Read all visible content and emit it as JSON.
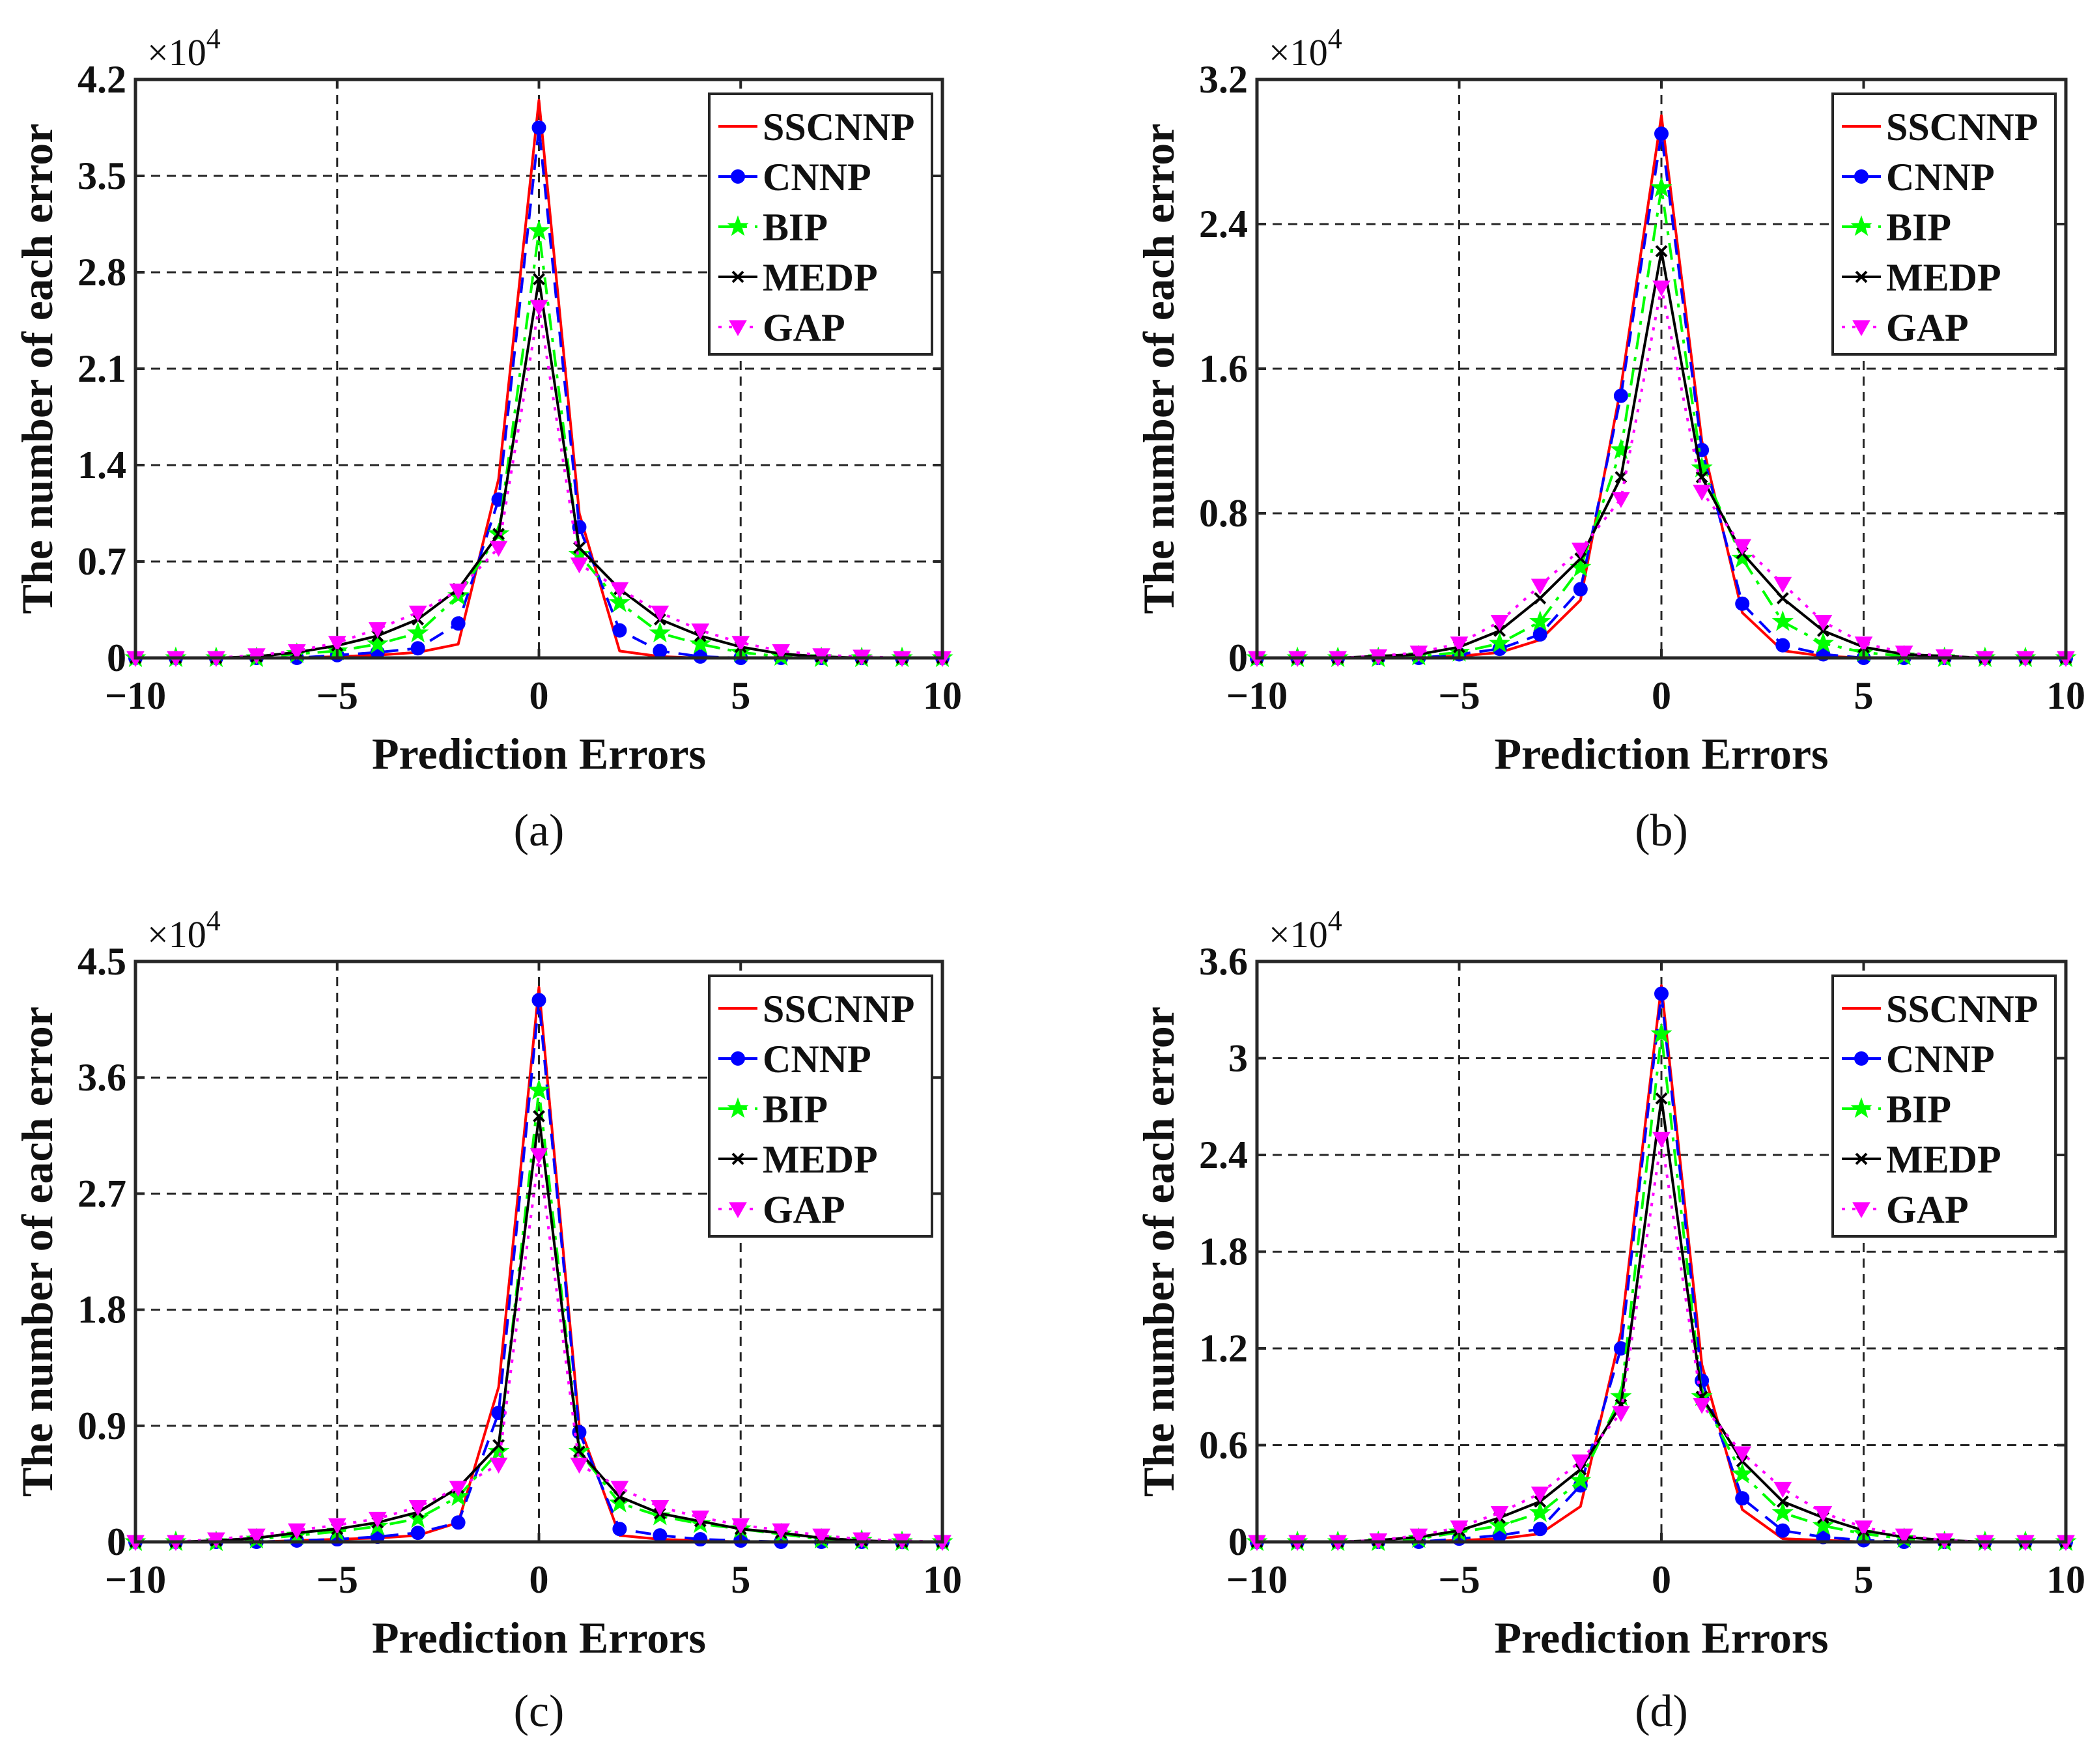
{
  "chart_data": [
    {
      "type": "line",
      "caption": "(a)",
      "xlabel": "Prediction Errors",
      "ylabel": "The number of each error",
      "multiplier": "×10",
      "multiplier_exp": "4",
      "xlim": [
        -10,
        10
      ],
      "ylim": [
        0,
        4.2
      ],
      "xticks": [
        -10,
        -5,
        0,
        5,
        10
      ],
      "xtick_labels": [
        "−10",
        "−5",
        "0",
        "5",
        "10"
      ],
      "yticks": [
        0,
        0.7,
        1.4,
        2.1,
        2.8,
        3.5,
        4.2
      ],
      "ytick_labels": [
        "0",
        "0.7",
        "1.4",
        "2.1",
        "2.8",
        "3.5",
        "4.2"
      ],
      "legend_position": "top-right",
      "x": [
        -10,
        -9,
        -8,
        -7,
        -6,
        -5,
        -4,
        -3,
        -2,
        -1,
        0,
        1,
        2,
        3,
        4,
        5,
        6,
        7,
        8,
        9,
        10
      ],
      "series": [
        {
          "name": "SSCNNP",
          "values": [
            0,
            0,
            0,
            0,
            0,
            0.01,
            0.02,
            0.04,
            0.1,
            1.3,
            4.05,
            1.05,
            0.05,
            0.01,
            0,
            0,
            0,
            0,
            0,
            0,
            0
          ]
        },
        {
          "name": "CNNP",
          "values": [
            0,
            0,
            0,
            0,
            0,
            0.02,
            0.04,
            0.07,
            0.25,
            1.15,
            3.85,
            0.95,
            0.2,
            0.05,
            0.01,
            0,
            0,
            0,
            0,
            0,
            0
          ]
        },
        {
          "name": "BIP",
          "values": [
            0,
            0,
            0,
            0,
            0.03,
            0.05,
            0.1,
            0.18,
            0.45,
            0.9,
            3.1,
            0.75,
            0.4,
            0.18,
            0.1,
            0.04,
            0.01,
            0,
            0,
            0,
            0
          ]
        },
        {
          "name": "MEDP",
          "values": [
            0,
            0,
            0,
            0.01,
            0.04,
            0.09,
            0.16,
            0.28,
            0.5,
            0.9,
            2.75,
            0.8,
            0.5,
            0.28,
            0.16,
            0.08,
            0.03,
            0.01,
            0,
            0,
            0
          ]
        },
        {
          "name": "GAP",
          "values": [
            0,
            0,
            0,
            0.02,
            0.05,
            0.11,
            0.21,
            0.33,
            0.49,
            0.8,
            2.55,
            0.68,
            0.5,
            0.33,
            0.2,
            0.11,
            0.05,
            0.02,
            0.01,
            0,
            0
          ]
        }
      ]
    },
    {
      "type": "line",
      "caption": "(b)",
      "xlabel": "Prediction Errors",
      "ylabel": "The number of each error",
      "multiplier": "×10",
      "multiplier_exp": "4",
      "xlim": [
        -10,
        10
      ],
      "ylim": [
        0,
        3.2
      ],
      "xticks": [
        -10,
        -5,
        0,
        5,
        10
      ],
      "xtick_labels": [
        "−10",
        "−5",
        "0",
        "5",
        "10"
      ],
      "yticks": [
        0,
        0.8,
        1.6,
        2.4,
        3.2
      ],
      "ytick_labels": [
        "0",
        "0.8",
        "1.6",
        "2.4",
        "3.2"
      ],
      "legend_position": "top-right",
      "x": [
        -10,
        -9,
        -8,
        -7,
        -6,
        -5,
        -4,
        -3,
        -2,
        -1,
        0,
        1,
        2,
        3,
        4,
        5,
        6,
        7,
        8,
        9,
        10
      ],
      "series": [
        {
          "name": "SSCNNP",
          "values": [
            0,
            0,
            0,
            0,
            0,
            0.01,
            0.03,
            0.1,
            0.32,
            1.5,
            3.0,
            1.2,
            0.25,
            0.04,
            0.01,
            0,
            0,
            0,
            0,
            0,
            0
          ]
        },
        {
          "name": "CNNP",
          "values": [
            0,
            0,
            0,
            0,
            0,
            0.02,
            0.05,
            0.13,
            0.38,
            1.45,
            2.9,
            1.15,
            0.3,
            0.07,
            0.02,
            0,
            0,
            0,
            0,
            0,
            0
          ]
        },
        {
          "name": "BIP",
          "values": [
            0,
            0,
            0,
            0,
            0.01,
            0.03,
            0.08,
            0.2,
            0.5,
            1.15,
            2.6,
            1.05,
            0.55,
            0.2,
            0.08,
            0.03,
            0.01,
            0,
            0,
            0,
            0
          ]
        },
        {
          "name": "MEDP",
          "values": [
            0,
            0,
            0,
            0.01,
            0.02,
            0.06,
            0.15,
            0.33,
            0.55,
            1.0,
            2.25,
            1.0,
            0.58,
            0.33,
            0.15,
            0.06,
            0.02,
            0.01,
            0,
            0,
            0
          ]
        },
        {
          "name": "GAP",
          "values": [
            0,
            0,
            0,
            0.01,
            0.03,
            0.08,
            0.2,
            0.4,
            0.6,
            0.88,
            2.05,
            0.92,
            0.62,
            0.41,
            0.2,
            0.08,
            0.03,
            0.01,
            0,
            0,
            0
          ]
        }
      ]
    },
    {
      "type": "line",
      "caption": "(c)",
      "xlabel": "Prediction Errors",
      "ylabel": "The number of each error",
      "multiplier": "×10",
      "multiplier_exp": "4",
      "xlim": [
        -10,
        10
      ],
      "ylim": [
        0,
        4.5
      ],
      "xticks": [
        -10,
        -5,
        0,
        5,
        10
      ],
      "xtick_labels": [
        "−10",
        "−5",
        "0",
        "5",
        "10"
      ],
      "yticks": [
        0,
        0.9,
        1.8,
        2.7,
        3.6,
        4.5
      ],
      "ytick_labels": [
        "0",
        "0.9",
        "1.8",
        "2.7",
        "3.6",
        "4.5"
      ],
      "legend_position": "top-right",
      "x": [
        -10,
        -9,
        -8,
        -7,
        -6,
        -5,
        -4,
        -3,
        -2,
        -1,
        0,
        1,
        2,
        3,
        4,
        5,
        6,
        7,
        8,
        9,
        10
      ],
      "series": [
        {
          "name": "SSCNNP",
          "values": [
            0,
            0,
            0,
            0,
            0.01,
            0.02,
            0.03,
            0.05,
            0.15,
            1.2,
            4.3,
            0.9,
            0.05,
            0.02,
            0.01,
            0,
            0,
            0,
            0,
            0,
            0
          ]
        },
        {
          "name": "CNNP",
          "values": [
            0,
            0,
            0,
            0,
            0.01,
            0.02,
            0.04,
            0.07,
            0.15,
            1.0,
            4.2,
            0.85,
            0.1,
            0.05,
            0.02,
            0.01,
            0,
            0,
            0,
            0,
            0
          ]
        },
        {
          "name": "BIP",
          "values": [
            0,
            0,
            0,
            0.02,
            0.05,
            0.08,
            0.12,
            0.18,
            0.35,
            0.7,
            3.5,
            0.7,
            0.3,
            0.2,
            0.14,
            0.1,
            0.06,
            0.02,
            0.01,
            0,
            0
          ]
        },
        {
          "name": "MEDP",
          "values": [
            0,
            0,
            0.01,
            0.03,
            0.07,
            0.1,
            0.15,
            0.23,
            0.42,
            0.75,
            3.3,
            0.7,
            0.35,
            0.22,
            0.16,
            0.1,
            0.07,
            0.03,
            0.01,
            0,
            0
          ]
        },
        {
          "name": "GAP",
          "values": [
            0,
            0,
            0.02,
            0.05,
            0.09,
            0.13,
            0.18,
            0.27,
            0.42,
            0.6,
            3.0,
            0.6,
            0.42,
            0.27,
            0.19,
            0.13,
            0.09,
            0.05,
            0.02,
            0.01,
            0
          ]
        }
      ]
    },
    {
      "type": "line",
      "caption": "(d)",
      "xlabel": "Prediction Errors",
      "ylabel": "The number of each error",
      "multiplier": "×10",
      "multiplier_exp": "4",
      "xlim": [
        -10,
        10
      ],
      "ylim": [
        0,
        3.6
      ],
      "xticks": [
        -10,
        -5,
        0,
        5,
        10
      ],
      "xtick_labels": [
        "−10",
        "−5",
        "0",
        "5",
        "10"
      ],
      "yticks": [
        0,
        0.6,
        1.2,
        1.8,
        2.4,
        3,
        3.6
      ],
      "ytick_labels": [
        "0",
        "0.6",
        "1.2",
        "1.8",
        "2.4",
        "3",
        "3.6"
      ],
      "legend_position": "top-right",
      "x": [
        -10,
        -9,
        -8,
        -7,
        -6,
        -5,
        -4,
        -3,
        -2,
        -1,
        0,
        1,
        2,
        3,
        4,
        5,
        6,
        7,
        8,
        9,
        10
      ],
      "series": [
        {
          "name": "SSCNNP",
          "values": [
            0,
            0,
            0,
            0,
            0,
            0.01,
            0.02,
            0.05,
            0.22,
            1.3,
            3.45,
            1.1,
            0.2,
            0.02,
            0.01,
            0,
            0,
            0,
            0,
            0,
            0
          ]
        },
        {
          "name": "CNNP",
          "values": [
            0,
            0,
            0,
            0,
            0,
            0.02,
            0.04,
            0.08,
            0.35,
            1.2,
            3.4,
            1.0,
            0.27,
            0.07,
            0.03,
            0.01,
            0,
            0,
            0,
            0,
            0
          ]
        },
        {
          "name": "BIP",
          "values": [
            0,
            0,
            0,
            0,
            0.02,
            0.06,
            0.1,
            0.18,
            0.38,
            0.9,
            3.15,
            0.9,
            0.42,
            0.18,
            0.1,
            0.05,
            0.02,
            0,
            0,
            0,
            0
          ]
        },
        {
          "name": "MEDP",
          "values": [
            0,
            0,
            0,
            0.01,
            0.03,
            0.07,
            0.15,
            0.25,
            0.45,
            0.85,
            2.75,
            0.9,
            0.5,
            0.25,
            0.15,
            0.07,
            0.03,
            0.01,
            0,
            0,
            0
          ]
        },
        {
          "name": "GAP",
          "values": [
            0,
            0,
            0,
            0.01,
            0.04,
            0.09,
            0.18,
            0.3,
            0.5,
            0.8,
            2.5,
            0.85,
            0.55,
            0.33,
            0.18,
            0.09,
            0.04,
            0.01,
            0,
            0,
            0
          ]
        }
      ]
    }
  ],
  "series_styles": [
    {
      "name": "SSCNNP",
      "color": "#ff0000",
      "dash": "none",
      "marker": "none"
    },
    {
      "name": "CNNP",
      "color": "#0000ff",
      "dash": "dashed",
      "marker": "circle"
    },
    {
      "name": "BIP",
      "color": "#00ff00",
      "dash": "dashdot",
      "marker": "star"
    },
    {
      "name": "MEDP",
      "color": "#000000",
      "dash": "none",
      "marker": "x"
    },
    {
      "name": "GAP",
      "color": "#ff00ff",
      "dash": "dotted",
      "marker": "triangle-down"
    }
  ]
}
